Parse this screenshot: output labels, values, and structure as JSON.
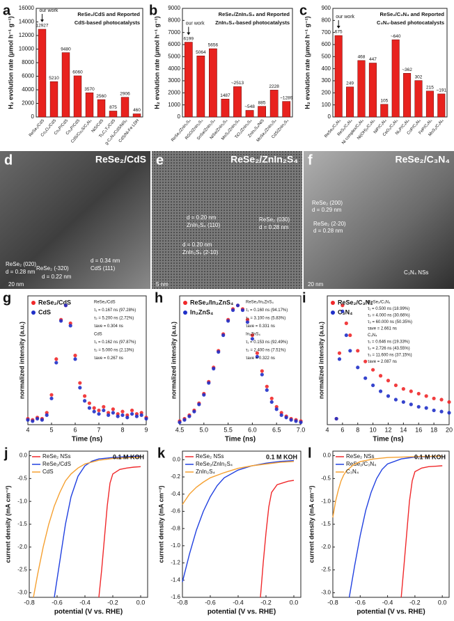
{
  "chart_data": [
    {
      "type": "bar",
      "label": "a",
      "title": "ReSe₂/CdS and Reported",
      "subtitle": "CdS-based photocatalysts",
      "ylabel": "H₂ evolution rate (μmol h⁻¹ g⁻¹)",
      "annotations": [
        "our work"
      ],
      "color": "#e8221e",
      "categories": [
        "ReSe₂/CdS",
        "Co₃O₄/CdS",
        "Co₂P/CdS",
        "Co₃P/CdS",
        "CdS/Cu₂S/C₃N₄",
        "NiS/CdS",
        "Ti₃C₂Tₓ/CdS",
        "g-C₃N₄/CdS/NiS₂",
        "CdS/Ni-Fe LDH"
      ],
      "values": [
        12927,
        5210,
        9480,
        6060,
        3570,
        2560,
        875,
        2906,
        460
      ],
      "ylim": [
        0,
        16000
      ],
      "yticks": [
        0,
        2000,
        4000,
        6000,
        8000,
        10000,
        12000,
        14000,
        16000
      ]
    },
    {
      "type": "bar",
      "label": "b",
      "title": "ReSe₂/ZnIn₂S₄ and Reported",
      "subtitle": "ZnIn₂S₄-based photocatalysts",
      "ylabel": "H₂ evolution rate (μmol h⁻¹ g⁻¹)",
      "annotations": [
        "our work"
      ],
      "color": "#e8221e",
      "categories": [
        "ReSe₂/ZnIn₂S₄",
        "RGO/ZnIn₂S₄",
        "SnSe/ZnIn₂S₄",
        "NiSe/ZnIn₂S₄",
        "MoS₂/ZnIn₂S₄",
        "TiO₂/ZnIn₂S₄",
        "ZnIn₂S₄/NiS",
        "MoSe₂/ZnIn₂S₄",
        "CdS/ZnIn₂S₄"
      ],
      "values": [
        6199,
        5064,
        5656,
        1487,
        2513,
        548,
        885,
        2228,
        1289
      ],
      "value_labels": [
        "6199",
        "5064",
        "5656",
        "1487",
        "~2513",
        "~548",
        "885",
        "2228",
        "~1289"
      ],
      "ylim": [
        0,
        9000
      ],
      "yticks": [
        0,
        1000,
        2000,
        3000,
        4000,
        5000,
        6000,
        7000,
        8000,
        9000
      ]
    },
    {
      "type": "bar",
      "label": "c",
      "title": "ReSe₂/C₃N₄ and Reported",
      "subtitle": "C₃N₄-based photocatalysts",
      "ylabel": "H₂ evolution rate (μmol h⁻¹ g⁻¹)",
      "annotations": [
        "our work"
      ],
      "color": "#e8221e",
      "categories": [
        "ReSe₂/C₃N₄",
        "ReS₂/C₃N₄",
        "Ni complex/C₃N₄",
        "Ni(OH)₂/C₃N₄",
        "NiP/C₃N₄",
        "CeO₂/C₃N₄",
        "Ni₂P/C₃N₄",
        "CoP/C₃N₄",
        "FeP/C₃N₄",
        "MoS₂/C₃N₄"
      ],
      "values": [
        675,
        249,
        468,
        447,
        105,
        640,
        362,
        302,
        215,
        191
      ],
      "value_labels": [
        "675",
        "249",
        "468",
        "447",
        "105",
        "~640",
        "~362",
        "302",
        "215",
        "~191"
      ],
      "ylim": [
        0,
        900
      ],
      "yticks": [
        0,
        100,
        200,
        300,
        400,
        500,
        600,
        700,
        800,
        900
      ]
    },
    {
      "type": "scatter",
      "label": "g",
      "xlabel": "Time (ns)",
      "ylabel": "normalized intensity (a.u.)",
      "annotations": [
        "ReSe₂/CdS",
        "τ₁ = 0.167 ns (97.28%)",
        "τ₂ = 5.200 ns (2.72%)",
        "τave = 0.304 ns",
        "CdS",
        "τ₁ = 0.162 ns (97.87%)",
        "τ₂ = 5.000 ns (2.13%)",
        "τave = 0.267 ns"
      ],
      "x": [
        4.0,
        4.2,
        4.4,
        4.6,
        4.8,
        5.0,
        5.2,
        5.4,
        5.6,
        5.8,
        6.0,
        6.2,
        6.4,
        6.6,
        6.8,
        7.0,
        7.2,
        7.4,
        7.6,
        7.8,
        8.0,
        8.2,
        8.4,
        8.6,
        8.8,
        9.0
      ],
      "series": [
        {
          "name": "ReSe₂/CdS",
          "color": "#f0282a",
          "values": [
            0.05,
            0.04,
            0.06,
            0.05,
            0.1,
            0.25,
            0.55,
            0.88,
            1.0,
            0.85,
            0.58,
            0.35,
            0.24,
            0.18,
            0.14,
            0.12,
            0.15,
            0.1,
            0.13,
            0.09,
            0.11,
            0.08,
            0.12,
            0.09,
            0.1,
            0.06
          ]
        },
        {
          "name": "CdS",
          "color": "#2030c8",
          "values": [
            0.04,
            0.03,
            0.05,
            0.04,
            0.08,
            0.22,
            0.52,
            0.87,
            1.0,
            0.83,
            0.55,
            0.31,
            0.2,
            0.14,
            0.11,
            0.09,
            0.12,
            0.08,
            0.1,
            0.07,
            0.08,
            0.06,
            0.09,
            0.07,
            0.08,
            0.05
          ]
        }
      ],
      "xlim": [
        4,
        9
      ],
      "xticks": [
        4,
        5,
        6,
        7,
        8,
        9
      ],
      "ylim": [
        0,
        1.08
      ]
    },
    {
      "type": "scatter",
      "label": "h",
      "xlabel": "Time (ns)",
      "ylabel": "normalized intensity (a.u.)",
      "annotations": [
        "ReSe₂/In₂ZnS₄",
        "τ₁ = 0.160 ns (94.17%)",
        "τ₂ = 3.100 ns (5.83%)",
        "τave = 0.331 ns",
        "In₂ZnS₄",
        "τ₁ = 0.153 ns (92.49%)",
        "τ₂ = 2.400 ns (7.51%)",
        "τave = 0.322 ns"
      ],
      "x": [
        4.5,
        4.6,
        4.7,
        4.8,
        4.9,
        5.0,
        5.1,
        5.2,
        5.3,
        5.4,
        5.5,
        5.6,
        5.7,
        5.8,
        5.9,
        6.0,
        6.1,
        6.2,
        6.3,
        6.4,
        6.5,
        6.6,
        6.7,
        6.8,
        6.9,
        7.0
      ],
      "series": [
        {
          "name": "ReSe₂/In₂ZnS₄",
          "color": "#f0282a",
          "values": [
            0.03,
            0.05,
            0.08,
            0.12,
            0.18,
            0.26,
            0.36,
            0.48,
            0.62,
            0.76,
            0.88,
            0.97,
            1.0,
            0.97,
            0.88,
            0.75,
            0.6,
            0.45,
            0.32,
            0.22,
            0.15,
            0.1,
            0.07,
            0.05,
            0.04,
            0.03
          ]
        },
        {
          "name": "In₂ZnS₄",
          "color": "#2030c8",
          "values": [
            0.02,
            0.04,
            0.07,
            0.11,
            0.17,
            0.25,
            0.35,
            0.47,
            0.61,
            0.75,
            0.87,
            0.96,
            1.0,
            0.96,
            0.86,
            0.72,
            0.57,
            0.42,
            0.29,
            0.19,
            0.13,
            0.08,
            0.06,
            0.04,
            0.03,
            0.02
          ]
        }
      ],
      "xlim": [
        4.5,
        7.0
      ],
      "xticks": [
        4.5,
        {
          "value": 5,
          "label": "5.0"
        },
        5.5,
        {
          "value": 6,
          "label": "6.0"
        },
        6.5,
        {
          "value": 7,
          "label": "7.0"
        }
      ],
      "ylim": [
        0,
        1.08
      ]
    },
    {
      "type": "scatter",
      "label": "i",
      "xlabel": "Time (ns)",
      "ylabel": "normalized intensity (a.u.)",
      "annotations": [
        "ReSe₂/C₃N₄",
        "τ₁ = 0.500 ns (18.99%)",
        "τ₂ = 4.000 ns (30.66%)",
        "τ₃ = 60.000 ns (50.35%)",
        "τave = 2.661 ns",
        "C₃N₄",
        "τ₁ = 0.646 ns (19.33%)",
        "τ₂ = 2.726 ns (43.55%)",
        "τ₃ = 11.600 ns (37.15%)",
        "τave = 2.087 ns"
      ],
      "x": [
        5.2,
        5.6,
        6,
        6.5,
        7,
        8,
        9,
        10,
        11,
        12,
        13,
        14,
        15,
        16,
        17,
        18,
        19,
        20
      ],
      "series": [
        {
          "name": "ReSe₂/C₃N₄",
          "color": "#f0282a",
          "values": [
            0.05,
            0.6,
            1.0,
            0.85,
            0.75,
            0.62,
            0.53,
            0.46,
            0.41,
            0.37,
            0.33,
            0.3,
            0.28,
            0.26,
            0.24,
            0.22,
            0.21,
            0.19
          ]
        },
        {
          "name": "C₃N₄",
          "color": "#2030c8",
          "values": [
            0.05,
            0.55,
            0.95,
            0.75,
            0.62,
            0.48,
            0.39,
            0.33,
            0.28,
            0.24,
            0.21,
            0.19,
            0.17,
            0.15,
            0.14,
            0.12,
            0.11,
            0.1
          ]
        }
      ],
      "xlim": [
        4,
        20
      ],
      "xticks": [
        4,
        6,
        8,
        10,
        12,
        14,
        16,
        18,
        20
      ],
      "ylim": [
        0,
        1.08
      ]
    },
    {
      "type": "line",
      "label": "j",
      "xlabel": "potential (V vs. RHE)",
      "ylabel": "current density (mA cm⁻²)",
      "annotations": [
        "0.1 M KOH"
      ],
      "series": [
        {
          "name": "ReSe₂ NSs",
          "color": "#f0282a",
          "x": [
            -0.3,
            -0.28,
            -0.26,
            -0.24,
            -0.22,
            -0.2,
            -0.15,
            -0.1,
            -0.05,
            0.0
          ],
          "values": [
            -3.1,
            -2.5,
            -1.8,
            -1.1,
            -0.6,
            -0.4,
            -0.3,
            -0.27,
            -0.25,
            -0.24
          ]
        },
        {
          "name": "ReSe₂/CdS",
          "color": "#2040e0",
          "x": [
            -0.62,
            -0.58,
            -0.54,
            -0.5,
            -0.45,
            -0.4,
            -0.35,
            -0.3,
            -0.2,
            -0.1,
            0.0
          ],
          "values": [
            -3.1,
            -2.3,
            -1.5,
            -0.9,
            -0.45,
            -0.22,
            -0.12,
            -0.07,
            -0.04,
            -0.02,
            -0.01
          ]
        },
        {
          "name": "CdS",
          "color": "#f5a030",
          "x": [
            -0.77,
            -0.74,
            -0.7,
            -0.66,
            -0.62,
            -0.58,
            -0.54,
            -0.5,
            -0.45,
            -0.4,
            -0.3,
            -0.2,
            0.0
          ],
          "values": [
            -3.1,
            -2.6,
            -2.0,
            -1.5,
            -1.1,
            -0.8,
            -0.55,
            -0.4,
            -0.27,
            -0.18,
            -0.1,
            -0.06,
            -0.03
          ]
        }
      ],
      "xlim": [
        -0.8,
        0.05
      ],
      "xticks": [
        -0.8,
        -0.6,
        -0.4,
        -0.2,
        {
          "value": 0,
          "label": "0.0"
        }
      ],
      "ylim": [
        -3.1,
        0.1
      ],
      "yticks": [
        {
          "value": 0,
          "label": "0.0"
        },
        -0.5,
        {
          "value": -1,
          "label": "-1.0"
        },
        -1.5,
        {
          "value": -2,
          "label": "-2.0"
        },
        -2.5,
        {
          "value": -3,
          "label": "-3.0"
        }
      ]
    },
    {
      "type": "line",
      "label": "k",
      "xlabel": "potential (V vs. RHE)",
      "ylabel": "current density (mA cm⁻²)",
      "annotations": [
        "0.1 M KOH"
      ],
      "series": [
        {
          "name": "ReSe₂ NSs",
          "color": "#f0282a",
          "x": [
            -0.24,
            -0.22,
            -0.2,
            -0.18,
            -0.16,
            -0.12,
            -0.08,
            -0.04,
            0.0
          ],
          "values": [
            -1.6,
            -1.2,
            -0.85,
            -0.55,
            -0.38,
            -0.29,
            -0.27,
            -0.25,
            -0.24
          ]
        },
        {
          "name": "ReSe₂/ZnIn₂S₄",
          "color": "#2040e0",
          "x": [
            -0.8,
            -0.75,
            -0.7,
            -0.65,
            -0.6,
            -0.55,
            -0.5,
            -0.4,
            -0.3,
            -0.2,
            -0.1,
            0.0
          ],
          "values": [
            -1.42,
            -1.1,
            -0.82,
            -0.6,
            -0.43,
            -0.3,
            -0.21,
            -0.12,
            -0.07,
            -0.04,
            -0.02,
            -0.01
          ]
        },
        {
          "name": "ZnIn₂S₄",
          "color": "#f5a030",
          "x": [
            -0.8,
            -0.75,
            -0.7,
            -0.65,
            -0.6,
            -0.5,
            -0.4,
            -0.3,
            -0.2,
            -0.1,
            0.0
          ],
          "values": [
            -0.52,
            -0.4,
            -0.32,
            -0.26,
            -0.21,
            -0.15,
            -0.1,
            -0.07,
            -0.05,
            -0.03,
            -0.02
          ]
        }
      ],
      "xlim": [
        -0.8,
        0.05
      ],
      "xticks": [
        -0.8,
        -0.6,
        -0.4,
        -0.2,
        {
          "value": 0,
          "label": "0.0"
        }
      ],
      "ylim": [
        -1.6,
        0.1
      ],
      "yticks": [
        {
          "value": 0,
          "label": "0.0"
        },
        -0.2,
        -0.4,
        -0.6,
        -0.8,
        {
          "value": -1,
          "label": "-1.0"
        },
        -1.2,
        -1.4,
        -1.6
      ]
    },
    {
      "type": "line",
      "label": "l",
      "xlabel": "potential (V vs. RHE)",
      "ylabel": "current density (mA cm⁻²)",
      "annotations": [
        "0.1 M KOH"
      ],
      "series": [
        {
          "name": "ReSe₂ NSs",
          "color": "#f0282a",
          "x": [
            -0.3,
            -0.28,
            -0.26,
            -0.24,
            -0.22,
            -0.2,
            -0.15,
            -0.1,
            -0.05,
            0.0
          ],
          "values": [
            -3.1,
            -2.4,
            -1.7,
            -1.0,
            -0.55,
            -0.35,
            -0.27,
            -0.24,
            -0.23,
            -0.22
          ]
        },
        {
          "name": "ReSe₂/C₃N₄",
          "color": "#2040e0",
          "x": [
            -0.68,
            -0.64,
            -0.6,
            -0.56,
            -0.52,
            -0.48,
            -0.44,
            -0.4,
            -0.3,
            -0.2,
            -0.1,
            0.0
          ],
          "values": [
            -3.1,
            -2.4,
            -1.75,
            -1.2,
            -0.8,
            -0.5,
            -0.3,
            -0.18,
            -0.07,
            -0.03,
            -0.02,
            -0.01
          ]
        },
        {
          "name": "C₃N₄",
          "color": "#f5a030",
          "x": [
            -0.8,
            -0.78,
            -0.76,
            -0.74,
            -0.72,
            -0.7,
            -0.65,
            -0.6,
            -0.5,
            -0.4,
            -0.2,
            0.0
          ],
          "values": [
            -1.35,
            -1.0,
            -0.75,
            -0.55,
            -0.42,
            -0.33,
            -0.2,
            -0.13,
            -0.07,
            -0.04,
            -0.02,
            -0.01
          ]
        }
      ],
      "xlim": [
        -0.8,
        0.05
      ],
      "xticks": [
        -0.8,
        -0.6,
        -0.4,
        -0.2,
        {
          "value": 0,
          "label": "0.0"
        }
      ],
      "ylim": [
        -3.1,
        0.1
      ],
      "yticks": [
        {
          "value": 0,
          "label": "0.0"
        },
        -0.5,
        {
          "value": -1,
          "label": "-1.0"
        },
        -1.5,
        {
          "value": -2,
          "label": "-2.0"
        },
        -2.5,
        {
          "value": -3,
          "label": "-3.0"
        }
      ]
    }
  ],
  "images": [
    {
      "label": "d",
      "title": "ReSe₂/CdS",
      "annotations": [
        "ReSe₂ (020)",
        "d = 0.28 nm",
        "ReSe₂ (-320)",
        "d = 0.22 nm",
        "d = 0.34 nm",
        "CdS (111)",
        "20 nm"
      ]
    },
    {
      "label": "e",
      "title": "ReSe₂/ZnIn₂S₄",
      "annotations": [
        "d = 0.20 nm",
        "ZnIn₂S₄ (110)",
        "d = 0.20 nm",
        "ZnIn₂S₄ (2-10)",
        "ReSe₂ (030)",
        "d = 0.28 nm",
        "5 nm"
      ]
    },
    {
      "label": "f",
      "title": "ReSe₂/C₃N₄",
      "annotations": [
        "ReSe₂ (200)",
        "d = 0.29 nm",
        "ReSe₂ (2-20)",
        "d = 0.28 nm",
        "C₃N₄ NSs",
        "20 nm"
      ]
    }
  ]
}
